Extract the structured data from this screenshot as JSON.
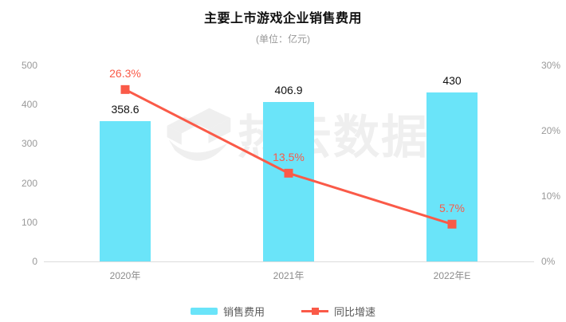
{
  "header": {
    "title": "主要上市游戏企业销售费用",
    "subtitle": "(单位：亿元)"
  },
  "watermark": {
    "text": "热云数据"
  },
  "chart_data": {
    "type": "bar",
    "title": "主要上市游戏企业销售费用",
    "subtitle": "(单位：亿元)",
    "categories": [
      "2020年",
      "2021年",
      "2022年E"
    ],
    "series": [
      {
        "name": "销售费用",
        "type": "bar",
        "axis": "left",
        "values": [
          358.6,
          406.9,
          430
        ],
        "labels": [
          "358.6",
          "406.9",
          "430"
        ],
        "color": "#6ae4f9"
      },
      {
        "name": "同比增速",
        "type": "line",
        "axis": "right",
        "values": [
          26.3,
          13.5,
          5.7
        ],
        "labels": [
          "26.3%",
          "13.5%",
          "5.7%"
        ],
        "color": "#fa5a48"
      }
    ],
    "left_axis": {
      "min": 0,
      "max": 500,
      "tick_labels": [
        "0",
        "100",
        "200",
        "300",
        "400",
        "500"
      ]
    },
    "right_axis": {
      "min": 0,
      "max": 30,
      "tick_labels": [
        "0%",
        "10%",
        "20%",
        "30%"
      ]
    },
    "grid": false,
    "legend_position": "bottom"
  },
  "colors": {
    "bar": "#6ae4f9",
    "line": "#fa5a48",
    "title_text": "#111111",
    "axis_text": "#999999",
    "x_axis_text": "#8c8c8c",
    "value_label_text": "#111111",
    "axis_line": "#dcdcdc",
    "legend_text": "#595959"
  }
}
